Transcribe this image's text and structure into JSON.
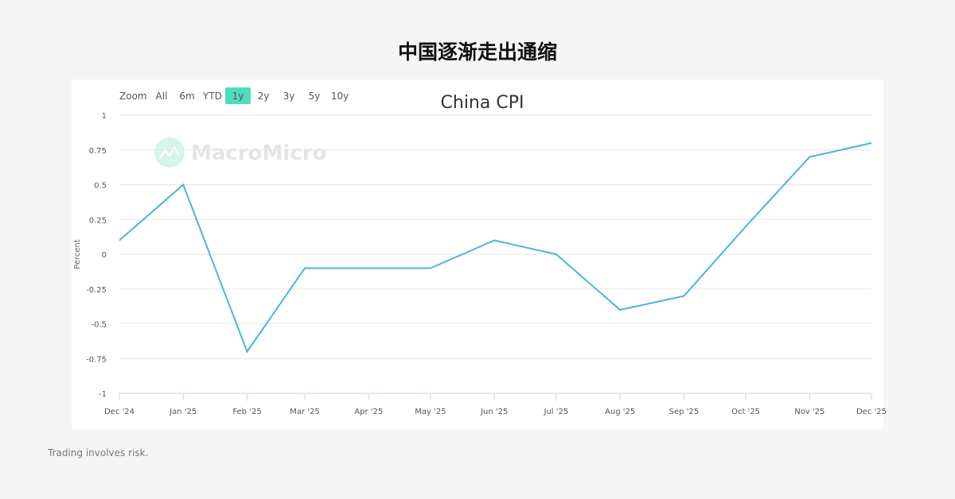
{
  "page_title": "中国逐渐走出通缩",
  "footer": "Trading involves risk.",
  "watermark": "MacroMicro",
  "zoom": {
    "label": "Zoom",
    "options": [
      "All",
      "6m",
      "YTD",
      "1y",
      "2y",
      "3y",
      "5y",
      "10y"
    ],
    "selected": "1y",
    "accent": "#4fdcbc"
  },
  "chart_data": {
    "type": "line",
    "title": "China CPI",
    "ylabel": "Percent",
    "xlabel": "",
    "ylim": [
      -1,
      1
    ],
    "yticks": [
      1,
      0.75,
      0.5,
      0.25,
      0,
      -0.25,
      -0.5,
      -0.75,
      -1
    ],
    "ytick_labels": [
      "1",
      "0.75",
      "0.5",
      "0.25",
      "0",
      "-0.25",
      "-0.5",
      "-0.75",
      "-1"
    ],
    "x": [
      "2024-12-01",
      "2025-01-01",
      "2025-02-01",
      "2025-03-01",
      "2025-04-01",
      "2025-05-01",
      "2025-06-01",
      "2025-07-01",
      "2025-08-01",
      "2025-09-01",
      "2025-10-01",
      "2025-11-01",
      "2025-12-01"
    ],
    "xtick_labels": [
      "Dec '24",
      "Jan '25",
      "Feb '25",
      "Mar '25",
      "Apr '25",
      "May '25",
      "Jun '25",
      "Jul '25",
      "Aug '25",
      "Sep '25",
      "Oct '25",
      "Nov '25",
      "Dec '25"
    ],
    "series": [
      {
        "values": [
          0.1,
          0.5,
          -0.7,
          -0.1,
          -0.1,
          -0.1,
          0.1,
          0.0,
          -0.4,
          -0.3,
          0.2,
          0.7,
          0.8
        ],
        "color": "#4ab3e2"
      }
    ],
    "grid": true,
    "legend": "none"
  }
}
